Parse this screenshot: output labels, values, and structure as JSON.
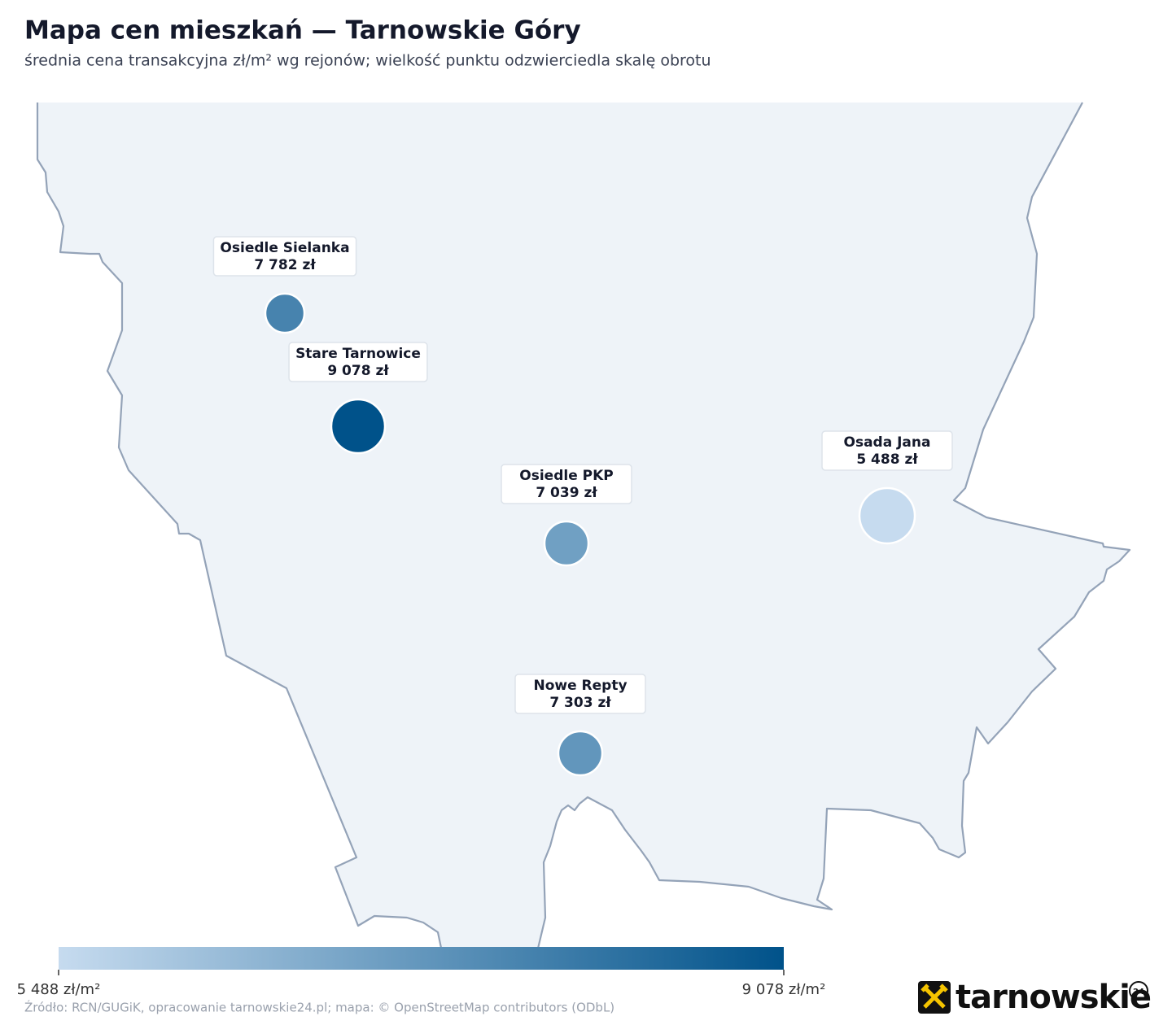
{
  "chart_data": {
    "type": "bubble-map",
    "title": "Mapa cen mieszkań — Tarnowskie Góry",
    "subtitle": "średnia cena transakcyjna zł/m² wg rejonów; wielkość punktu odzwierciedla skalę obrotu",
    "categories": [
      "Osiedle Sielanka",
      "Stare Tarnowice",
      "Osiedle PKP",
      "Osada Jana",
      "Nowe Repty"
    ],
    "values": [
      7782,
      9078,
      7039,
      5488,
      7303
    ],
    "value_labels": [
      "7 782 zł",
      "9 078 zł",
      "7 039 zł",
      "5 488 zł",
      "7 303 zł"
    ],
    "colorscale": [
      "#c6dbef",
      "#00528a"
    ],
    "clim": [
      5488,
      9078
    ],
    "cticks": [
      {
        "value": 5488,
        "label": "5 488 zł/m²"
      },
      {
        "value": 9078,
        "label": "9 078 zł/m²"
      }
    ]
  },
  "source": "Źródło: RCN/GUGiK, opracowanie tarnowskie24.pl; mapa: © OpenStreetMap contributors (ODbL)",
  "logo": {
    "text": "tarnowskie",
    "badge": "24"
  }
}
